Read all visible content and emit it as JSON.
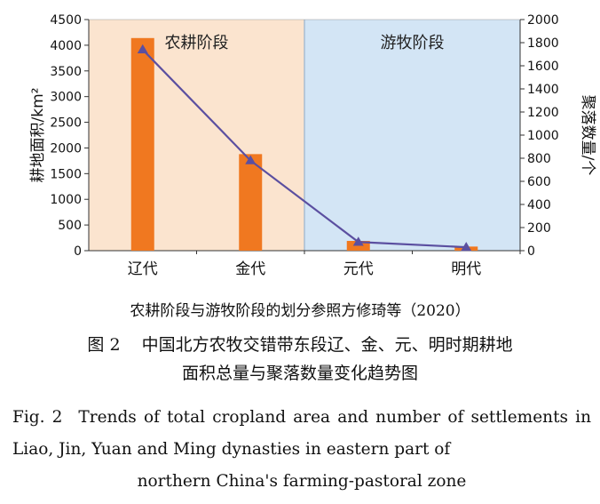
{
  "chart_data": {
    "type": "bar+line",
    "categories": [
      "辽代",
      "金代",
      "元代",
      "明代"
    ],
    "series": [
      {
        "axis": "left",
        "kind": "bar",
        "color": "#f07820",
        "values": [
          4140,
          1880,
          190,
          80
        ]
      },
      {
        "axis": "right",
        "kind": "line",
        "color": "#5b4fa0",
        "marker": "triangle",
        "values": [
          1740,
          780,
          75,
          30
        ]
      }
    ],
    "ylabel_left": "耕地面积/km²",
    "ylabel_right": "聚落数量/个",
    "ylim_left": [
      0,
      4500
    ],
    "ylim_right": [
      0,
      2000
    ],
    "yticks_left": [
      "0",
      "500",
      "1000",
      "1500",
      "2000",
      "2500",
      "3000",
      "3500",
      "4000",
      "4500"
    ],
    "yticks_right": [
      "0",
      "200",
      "400",
      "600",
      "800",
      "1000",
      "1200",
      "1400",
      "1600",
      "1800",
      "2000"
    ],
    "phases": [
      {
        "label": "农耕阶段",
        "color": "#fbe4cf",
        "span": [
          "辽代",
          "金代"
        ]
      },
      {
        "label": "游牧阶段",
        "color": "#d3e5f5",
        "span": [
          "元代",
          "明代"
        ]
      }
    ]
  },
  "note": "农耕阶段与游牧阶段的划分参照方修琦等（2020）",
  "caption_cn": {
    "num": "图 2",
    "line1": "中国北方农牧交错带东段辽、金、元、明时期耕地",
    "line2": "面积总量与聚落数量变化趋势图"
  },
  "caption_en": {
    "num": "Fig. 2",
    "line1": "Trends of total cropland area and number of settlements in Liao, Jin, Yuan and Ming dynasties in eastern part of",
    "line2": "northern China's farming-pastoral zone"
  }
}
